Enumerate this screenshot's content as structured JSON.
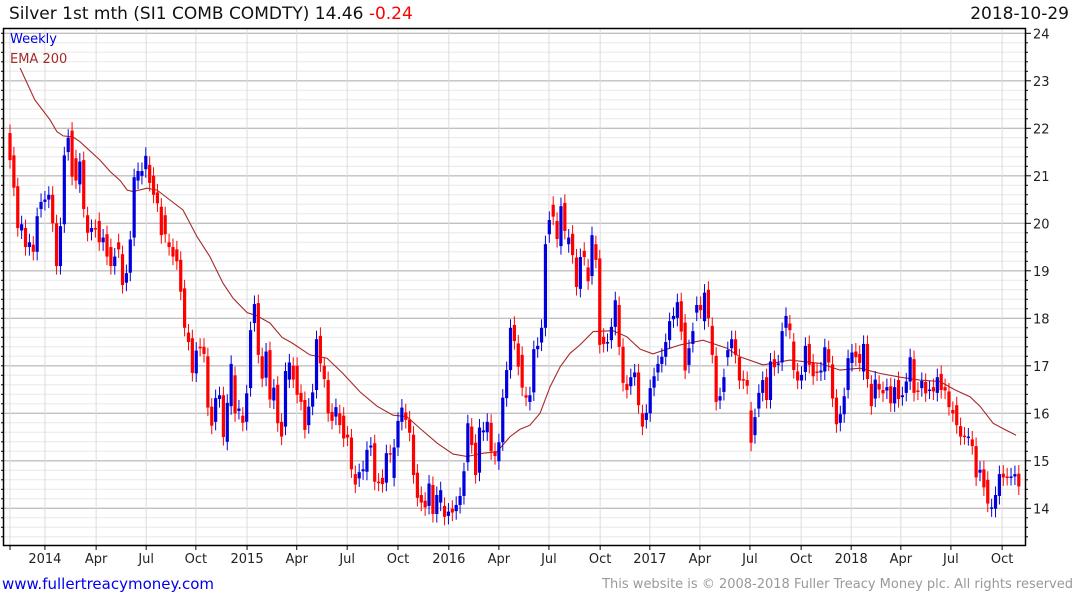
{
  "header": {
    "title": "Silver 1st mth (SI1 COMB COMDTY) 14.46",
    "change": "-0.24",
    "date": "2018-10-29"
  },
  "legend": {
    "period": "Weekly",
    "indicator": "EMA 200"
  },
  "footer": {
    "link": "www.fullertreacymoney.com",
    "copyright": "This website is © 2008-2018 Fuller Treacy Money plc. All rights reserved"
  },
  "colors": {
    "up": "#0000dd",
    "down": "#ff0000",
    "ema": "#a52a2a",
    "grid_major": "#c0c0c0",
    "grid_minor": "#e8e8e8"
  },
  "chart_data": {
    "type": "candlestick",
    "title": "Silver 1st mth (SI1 COMB COMDTY)",
    "interval": "weekly",
    "ylim": [
      13.23,
      24.3
    ],
    "y_ticks": [
      14,
      15,
      16,
      17,
      18,
      19,
      20,
      21,
      22,
      23,
      24
    ],
    "y_minor_step": 0.2,
    "x_ticks": [
      {
        "week": 9.0,
        "label": "2014"
      },
      {
        "week": 22.2,
        "label": "Apr"
      },
      {
        "week": 35.1,
        "label": "Jul"
      },
      {
        "week": 47.9,
        "label": "Oct"
      },
      {
        "week": 61.1,
        "label": "2015"
      },
      {
        "week": 73.9,
        "label": "Apr"
      },
      {
        "week": 86.9,
        "label": "Jul"
      },
      {
        "week": 100,
        "label": "Oct"
      },
      {
        "week": 113.1,
        "label": "2016"
      },
      {
        "week": 126,
        "label": "Apr"
      },
      {
        "week": 138.9,
        "label": "Jul"
      },
      {
        "week": 152.1,
        "label": "Oct"
      },
      {
        "week": 164.9,
        "label": "2017"
      },
      {
        "week": 177.8,
        "label": "Apr"
      },
      {
        "week": 190.7,
        "label": "Jul"
      },
      {
        "week": 203.9,
        "label": "Oct"
      },
      {
        "week": 216.8,
        "label": "2018"
      },
      {
        "week": 229.6,
        "label": "Apr"
      },
      {
        "week": 242.5,
        "label": "Jul"
      },
      {
        "week": 255.7,
        "label": "Oct"
      }
    ],
    "candles_open_close": [
      [
        21.9,
        21.33
      ],
      [
        21.43,
        20.75
      ],
      [
        20.78,
        19.9
      ],
      [
        19.85,
        19.98
      ],
      [
        19.9,
        19.5
      ],
      [
        19.5,
        19.6
      ],
      [
        19.55,
        19.4
      ],
      [
        19.4,
        20.15
      ],
      [
        20.3,
        20.45
      ],
      [
        20.45,
        20.5
      ],
      [
        20.5,
        20.6
      ],
      [
        20.6,
        20.0
      ],
      [
        20.0,
        19.1
      ],
      [
        19.1,
        19.94
      ],
      [
        19.98,
        21.43
      ],
      [
        21.5,
        21.8
      ],
      [
        21.95,
        20.98
      ],
      [
        21.37,
        20.9
      ],
      [
        20.82,
        21.3
      ],
      [
        21.33,
        20.3
      ],
      [
        20.17,
        19.8
      ],
      [
        19.82,
        19.9
      ],
      [
        19.9,
        19.88
      ],
      [
        20.05,
        19.6
      ],
      [
        19.6,
        19.7
      ],
      [
        19.77,
        19.3
      ],
      [
        19.5,
        19.1
      ],
      [
        19.1,
        19.3
      ],
      [
        19.6,
        19.45
      ],
      [
        19.35,
        18.7
      ],
      [
        18.75,
        18.95
      ],
      [
        18.96,
        19.66
      ],
      [
        19.7,
        20.97
      ],
      [
        20.9,
        21.1
      ],
      [
        21.0,
        21.1
      ],
      [
        21.14,
        21.42
      ],
      [
        21.23,
        20.85
      ],
      [
        21.0,
        20.6
      ],
      [
        20.65,
        20.42
      ],
      [
        20.35,
        19.75
      ],
      [
        20.17,
        19.77
      ],
      [
        19.6,
        19.5
      ],
      [
        19.5,
        19.3
      ],
      [
        19.45,
        19.2
      ],
      [
        19.23,
        18.56
      ],
      [
        18.63,
        17.8
      ],
      [
        17.7,
        17.5
      ],
      [
        17.58,
        16.85
      ],
      [
        16.84,
        17.32
      ],
      [
        17.4,
        17.38
      ],
      [
        17.4,
        17.25
      ],
      [
        17.2,
        16.12
      ],
      [
        16.14,
        15.74
      ],
      [
        15.82,
        16.32
      ],
      [
        16.3,
        16.38
      ],
      [
        16.38,
        15.5
      ],
      [
        15.4,
        16.22
      ],
      [
        16.15,
        17.04
      ],
      [
        16.8,
        16.0
      ],
      [
        16.05,
        16.1
      ],
      [
        15.95,
        15.8
      ],
      [
        15.82,
        16.42
      ],
      [
        16.53,
        17.75
      ],
      [
        17.9,
        18.3
      ],
      [
        18.32,
        17.23
      ],
      [
        17.2,
        16.73
      ],
      [
        16.75,
        17.3
      ],
      [
        17.33,
        16.29
      ],
      [
        16.27,
        16.54
      ],
      [
        16.6,
        15.79
      ],
      [
        15.82,
        15.51
      ],
      [
        15.72,
        16.89
      ],
      [
        16.71,
        17.07
      ],
      [
        17.0,
        16.71
      ],
      [
        17.0,
        16.39
      ],
      [
        16.43,
        16.24
      ],
      [
        16.28,
        15.65
      ],
      [
        15.75,
        16.14
      ],
      [
        16.14,
        16.44
      ],
      [
        16.49,
        17.56
      ],
      [
        17.63,
        17.05
      ],
      [
        17.0,
        16.72
      ],
      [
        16.7,
        16.0
      ],
      [
        16.03,
        15.84
      ],
      [
        15.93,
        16.13
      ],
      [
        16.0,
        15.75
      ],
      [
        15.95,
        15.47
      ],
      [
        15.55,
        15.49
      ],
      [
        15.49,
        14.82
      ],
      [
        14.72,
        14.5
      ],
      [
        14.63,
        14.76
      ],
      [
        14.78,
        14.82
      ],
      [
        14.77,
        15.23
      ],
      [
        15.28,
        15.32
      ],
      [
        15.37,
        14.56
      ],
      [
        14.56,
        14.54
      ],
      [
        14.64,
        14.51
      ],
      [
        14.54,
        15.16
      ],
      [
        15.16,
        15.14
      ],
      [
        14.64,
        15.28
      ],
      [
        15.28,
        15.84
      ],
      [
        15.82,
        16.12
      ],
      [
        16.02,
        15.86
      ],
      [
        15.87,
        15.59
      ],
      [
        15.55,
        14.7
      ],
      [
        14.75,
        14.22
      ],
      [
        14.28,
        14.12
      ],
      [
        14.16,
        14.02
      ],
      [
        14.05,
        14.52
      ],
      [
        14.49,
        13.88
      ],
      [
        13.88,
        14.28
      ],
      [
        14.12,
        14.38
      ],
      [
        14.05,
        13.82
      ],
      [
        13.84,
        13.93
      ],
      [
        13.99,
        13.91
      ],
      [
        13.94,
        14.07
      ],
      [
        14.07,
        14.26
      ],
      [
        14.26,
        14.78
      ],
      [
        14.97,
        15.79
      ],
      [
        15.72,
        15.33
      ],
      [
        15.38,
        14.7
      ],
      [
        14.75,
        15.7
      ],
      [
        15.6,
        15.64
      ],
      [
        15.6,
        15.82
      ],
      [
        15.8,
        15.2
      ],
      [
        15.2,
        15.1
      ],
      [
        14.99,
        15.39
      ],
      [
        15.39,
        16.33
      ],
      [
        16.32,
        16.91
      ],
      [
        16.91,
        17.8
      ],
      [
        17.86,
        17.52
      ],
      [
        17.47,
        16.98
      ],
      [
        17.23,
        16.54
      ],
      [
        16.38,
        16.33
      ],
      [
        16.24,
        16.38
      ],
      [
        16.44,
        17.35
      ],
      [
        17.35,
        17.42
      ],
      [
        17.49,
        17.8
      ],
      [
        17.8,
        19.56
      ],
      [
        19.77,
        20.07
      ],
      [
        20.39,
        20.14
      ],
      [
        20.05,
        19.67
      ],
      [
        19.52,
        20.36
      ],
      [
        20.43,
        19.84
      ],
      [
        19.56,
        19.7
      ],
      [
        19.78,
        19.33
      ],
      [
        19.28,
        18.66
      ],
      [
        18.62,
        19.29
      ],
      [
        19.42,
        19.29
      ],
      [
        19.07,
        18.78
      ],
      [
        18.89,
        19.75
      ],
      [
        19.56,
        19.23
      ],
      [
        19.26,
        17.44
      ],
      [
        17.61,
        17.46
      ],
      [
        17.48,
        17.5
      ],
      [
        17.54,
        17.82
      ],
      [
        17.82,
        18.38
      ],
      [
        18.28,
        17.4
      ],
      [
        17.4,
        16.64
      ],
      [
        16.62,
        16.49
      ],
      [
        16.57,
        16.76
      ],
      [
        16.76,
        16.86
      ],
      [
        16.86,
        16.17
      ],
      [
        16.0,
        15.72
      ],
      [
        15.86,
        16.01
      ],
      [
        16.0,
        16.53
      ],
      [
        16.54,
        16.78
      ],
      [
        16.86,
        17.04
      ],
      [
        17.04,
        17.19
      ],
      [
        17.19,
        17.5
      ],
      [
        17.54,
        17.94
      ],
      [
        17.98,
        18.05
      ],
      [
        18.01,
        18.34
      ],
      [
        18.36,
        17.72
      ],
      [
        17.91,
        16.9
      ],
      [
        17.02,
        17.37
      ],
      [
        17.46,
        17.73
      ],
      [
        18.12,
        18.28
      ],
      [
        18.28,
        18.17
      ],
      [
        17.94,
        18.54
      ],
      [
        18.6,
        18.0
      ],
      [
        17.84,
        17.23
      ],
      [
        17.21,
        16.24
      ],
      [
        16.27,
        16.36
      ],
      [
        16.45,
        16.76
      ],
      [
        17.18,
        17.33
      ],
      [
        17.37,
        17.56
      ],
      [
        17.56,
        17.23
      ],
      [
        17.18,
        16.69
      ],
      [
        16.72,
        16.69
      ],
      [
        16.7,
        16.58
      ],
      [
        16.06,
        15.38
      ],
      [
        15.54,
        15.92
      ],
      [
        16.1,
        16.43
      ],
      [
        16.43,
        16.7
      ],
      [
        16.76,
        16.28
      ],
      [
        16.28,
        17.09
      ],
      [
        17.14,
        16.97
      ],
      [
        17.02,
        17.05
      ],
      [
        17.07,
        17.73
      ],
      [
        17.8,
        18.05
      ],
      [
        17.89,
        17.75
      ],
      [
        17.51,
        16.91
      ],
      [
        16.88,
        16.69
      ],
      [
        16.69,
        16.81
      ],
      [
        16.87,
        17.42
      ],
      [
        17.46,
        17.02
      ],
      [
        17.07,
        16.78
      ],
      [
        16.88,
        16.86
      ],
      [
        16.86,
        16.9
      ],
      [
        16.88,
        17.39
      ],
      [
        17.35,
        17.07
      ],
      [
        17.03,
        16.31
      ],
      [
        16.33,
        15.77
      ],
      [
        15.8,
        15.98
      ],
      [
        15.98,
        16.36
      ],
      [
        16.49,
        17.16
      ],
      [
        17.06,
        17.28
      ],
      [
        17.3,
        17.18
      ],
      [
        17.25,
        17.06
      ],
      [
        16.88,
        17.46
      ],
      [
        17.46,
        16.72
      ],
      [
        16.62,
        16.15
      ],
      [
        16.31,
        16.71
      ],
      [
        16.62,
        16.5
      ],
      [
        16.49,
        16.42
      ],
      [
        16.48,
        16.55
      ],
      [
        16.57,
        16.21
      ],
      [
        16.21,
        16.55
      ],
      [
        16.7,
        16.3
      ],
      [
        16.34,
        16.38
      ],
      [
        16.43,
        16.67
      ],
      [
        16.67,
        17.18
      ],
      [
        17.14,
        16.43
      ],
      [
        16.48,
        16.46
      ],
      [
        16.53,
        16.68
      ],
      [
        16.66,
        16.42
      ],
      [
        16.48,
        16.5
      ],
      [
        16.55,
        16.46
      ],
      [
        16.43,
        16.76
      ],
      [
        16.83,
        16.49
      ],
      [
        16.55,
        16.48
      ],
      [
        16.46,
        16.13
      ],
      [
        16.07,
        16.0
      ],
      [
        16.17,
        15.75
      ],
      [
        15.73,
        15.51
      ],
      [
        15.53,
        15.52
      ],
      [
        15.5,
        15.51
      ],
      [
        15.45,
        15.31
      ],
      [
        15.31,
        14.65
      ],
      [
        14.75,
        14.81
      ],
      [
        14.82,
        14.44
      ],
      [
        14.6,
        14.1
      ],
      [
        14.0,
        14.02
      ],
      [
        13.99,
        14.28
      ],
      [
        14.26,
        14.72
      ],
      [
        14.73,
        14.65
      ],
      [
        14.67,
        14.66
      ],
      [
        14.66,
        14.67
      ],
      [
        14.67,
        14.72
      ],
      [
        14.73,
        14.46
      ]
    ],
    "ema200": [
      [
        2.6,
        23.27
      ],
      [
        6.4,
        22.6
      ],
      [
        10.3,
        22.18
      ],
      [
        12.1,
        21.93
      ],
      [
        13.7,
        21.84
      ],
      [
        16.2,
        21.82
      ],
      [
        18,
        21.72
      ],
      [
        23.2,
        21.33
      ],
      [
        25.8,
        21.09
      ],
      [
        28.4,
        20.9
      ],
      [
        30.2,
        20.7
      ],
      [
        31.7,
        20.67
      ],
      [
        35.3,
        20.74
      ],
      [
        37.9,
        20.7
      ],
      [
        41.2,
        20.49
      ],
      [
        44.6,
        20.28
      ],
      [
        48.2,
        19.72
      ],
      [
        51.5,
        19.3
      ],
      [
        54.9,
        18.74
      ],
      [
        57.5,
        18.42
      ],
      [
        61.1,
        18.12
      ],
      [
        63.7,
        18.05
      ],
      [
        67,
        17.9
      ],
      [
        70.1,
        17.6
      ],
      [
        72.9,
        17.47
      ],
      [
        77.3,
        17.23
      ],
      [
        81.7,
        17.16
      ],
      [
        85.8,
        16.84
      ],
      [
        90.2,
        16.45
      ],
      [
        94.6,
        16.15
      ],
      [
        98.7,
        15.96
      ],
      [
        102.3,
        15.93
      ],
      [
        105.7,
        15.68
      ],
      [
        110.1,
        15.37
      ],
      [
        114.2,
        15.14
      ],
      [
        117.8,
        15.09
      ],
      [
        121.9,
        15.16
      ],
      [
        125.5,
        15.19
      ],
      [
        128.9,
        15.51
      ],
      [
        131.4,
        15.66
      ],
      [
        134,
        15.75
      ],
      [
        136.6,
        16.0
      ],
      [
        139.2,
        16.56
      ],
      [
        141.8,
        16.98
      ],
      [
        144.3,
        17.26
      ],
      [
        146.9,
        17.44
      ],
      [
        150.3,
        17.72
      ],
      [
        155.4,
        17.74
      ],
      [
        159,
        17.61
      ],
      [
        162.4,
        17.35
      ],
      [
        165.7,
        17.25
      ],
      [
        169.3,
        17.35
      ],
      [
        172.7,
        17.44
      ],
      [
        178.6,
        17.54
      ],
      [
        184.8,
        17.37
      ],
      [
        188.1,
        17.19
      ],
      [
        194.1,
        17.02
      ],
      [
        201,
        17.12
      ],
      [
        208.8,
        17.05
      ],
      [
        213.9,
        16.91
      ],
      [
        219.1,
        16.95
      ],
      [
        224.2,
        16.84
      ],
      [
        229.4,
        16.76
      ],
      [
        234.5,
        16.7
      ],
      [
        239.7,
        16.67
      ],
      [
        243.6,
        16.49
      ],
      [
        247.4,
        16.35
      ],
      [
        250,
        16.15
      ],
      [
        253.4,
        15.79
      ],
      [
        255.9,
        15.68
      ],
      [
        259.3,
        15.54
      ]
    ],
    "last": 14.46,
    "change": -0.24
  }
}
